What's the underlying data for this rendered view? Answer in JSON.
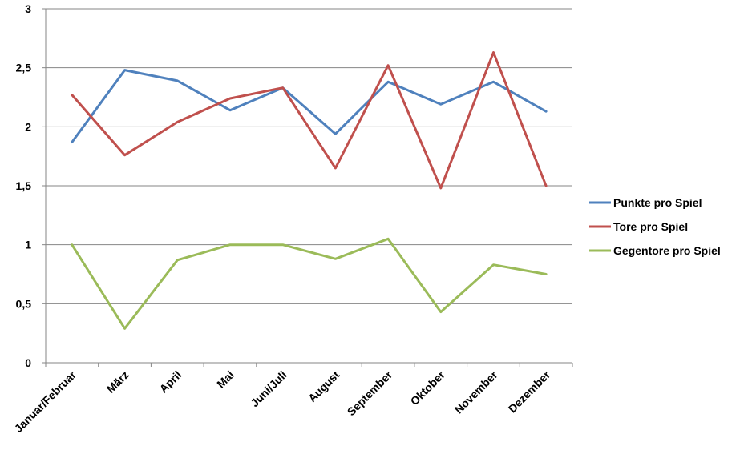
{
  "chart_data": {
    "type": "line",
    "title": "",
    "xlabel": "",
    "ylabel": "",
    "categories": [
      "Januar/Februar",
      "März",
      "April",
      "Mai",
      "Juni/Juli",
      "August",
      "September",
      "Oktober",
      "November",
      "Dezember"
    ],
    "ylim": [
      0,
      3
    ],
    "yticks": [
      "0",
      "0,5",
      "1",
      "1,5",
      "2",
      "2,5",
      "3"
    ],
    "grid": true,
    "legend_position": "right",
    "series": [
      {
        "name": "Punkte pro Spiel",
        "color": "#4F81BD",
        "values": [
          1.87,
          2.48,
          2.39,
          2.14,
          2.33,
          1.94,
          2.38,
          2.19,
          2.38,
          2.13
        ]
      },
      {
        "name": "Tore pro Spiel",
        "color": "#C0504D",
        "values": [
          2.27,
          1.76,
          2.04,
          2.24,
          2.33,
          1.65,
          2.52,
          1.48,
          2.63,
          1.5
        ]
      },
      {
        "name": "Gegentore pro Spiel",
        "color": "#9BBB59",
        "values": [
          1.0,
          0.29,
          0.87,
          1.0,
          1.0,
          0.88,
          1.05,
          0.43,
          0.83,
          0.75
        ]
      }
    ]
  }
}
